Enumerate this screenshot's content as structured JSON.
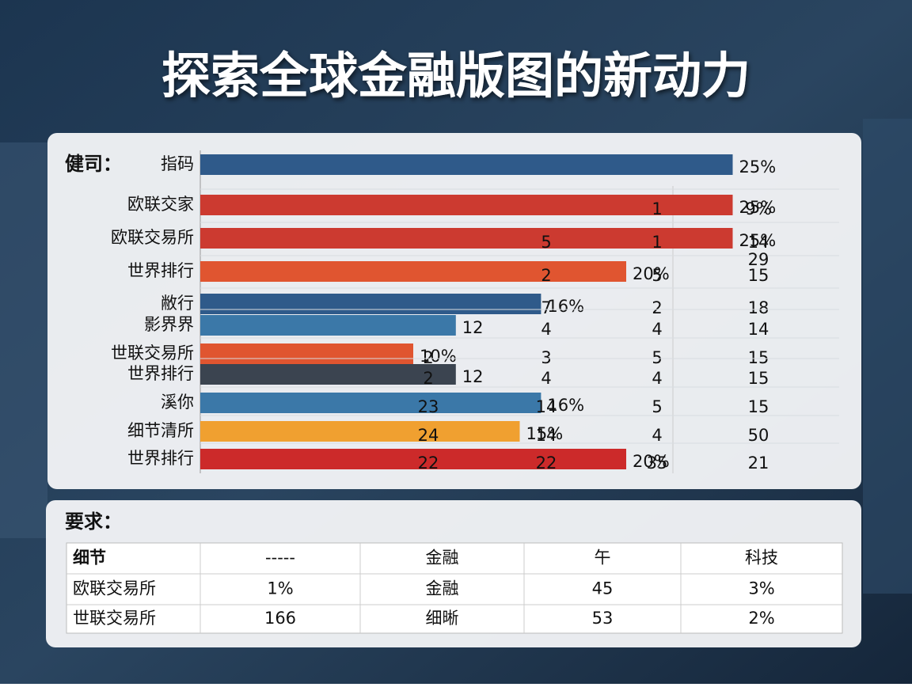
{
  "header": {
    "title": "探索全球金融版图的新动力"
  },
  "bar_panel": {
    "label": "健司：",
    "rows": [
      {
        "label": "指码",
        "value": 25,
        "value_label": "25%",
        "color": "#2f5a8a",
        "cells": [
          "",
          "",
          "",
          ""
        ]
      },
      {
        "label": "欧联交家",
        "value": 25,
        "value_label": "25%",
        "color": "#cc3a30",
        "cells": [
          "",
          "",
          "1",
          "9%"
        ]
      },
      {
        "label": "欧联交易所",
        "value": 25,
        "value_label": "25%",
        "color": "#cc3a30",
        "cells": [
          "",
          "5",
          "1",
          "14"
        ]
      },
      {
        "label": "世界排行",
        "value": 20,
        "value_label": "20%",
        "color": "#e05530",
        "cells": [
          "",
          "2",
          "5",
          "15"
        ],
        "note": "29"
      },
      {
        "label": "敝行",
        "value": 16,
        "value_label": "16%",
        "color": "#2f5a8a",
        "cells": [
          "",
          "7",
          "2",
          "18"
        ]
      },
      {
        "label": "影界界",
        "value": 12,
        "value_label": "12",
        "color": "#3b78a8",
        "cells": [
          "",
          "4",
          "4",
          "14"
        ]
      },
      {
        "label": "世联交易所",
        "value": 10,
        "value_label": "10%",
        "color": "#e05530",
        "cells": [
          "2",
          "3",
          "5",
          "15"
        ]
      },
      {
        "label": "世界排行",
        "value": 12,
        "value_label": "12",
        "color": "#3b4450",
        "cells": [
          "2",
          "4",
          "4",
          "15"
        ]
      },
      {
        "label": "溪你",
        "value": 16,
        "value_label": "16%",
        "color": "#3b78a8",
        "cells": [
          "23",
          "14",
          "5",
          "15"
        ]
      },
      {
        "label": "细节清所",
        "value": 15,
        "value_label": "15%",
        "color": "#f0a030",
        "cells": [
          "24",
          "14",
          "4",
          "50"
        ]
      },
      {
        "label": "世界排行",
        "value": 20,
        "value_label": "20%",
        "color": "#cc2a2a",
        "cells": [
          "22",
          "22",
          "35",
          "21"
        ]
      }
    ]
  },
  "table": {
    "label": "要求：",
    "rows": [
      [
        "细节",
        "-----",
        "金融",
        "午",
        "科技"
      ],
      [
        "欧联交易所",
        "1%",
        "金融",
        "45",
        "3%"
      ],
      [
        "世联交易所",
        "166",
        "细晰",
        "53",
        "2%"
      ]
    ]
  }
}
